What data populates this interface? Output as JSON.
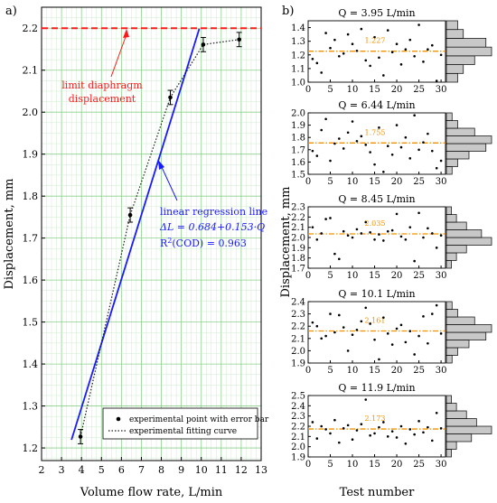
{
  "chart_data": [
    {
      "panel_label": "a)",
      "type": "scatter",
      "xlabel": "Volume flow rate, L/min",
      "ylabel": "Displacement, mm",
      "xlim": [
        2,
        13
      ],
      "ylim": [
        1.17,
        2.25
      ],
      "xticks": [
        2,
        3,
        4,
        5,
        6,
        7,
        8,
        9,
        10,
        11,
        12,
        13
      ],
      "yticks": [
        1.2,
        1.3,
        1.4,
        1.5,
        1.6,
        1.7,
        1.8,
        1.9,
        2.0,
        2.1,
        2.2
      ],
      "grid": "on",
      "series": [
        {
          "name": "experimental point with error bar",
          "kind": "points_with_error_bars",
          "x": [
            3.95,
            6.44,
            8.45,
            10.1,
            11.9
          ],
          "y": [
            1.227,
            1.755,
            2.035,
            2.161,
            2.173
          ],
          "err": [
            0.017,
            0.017,
            0.017,
            0.017,
            0.017
          ]
        },
        {
          "name": "experimental fitting curve",
          "kind": "dotted_line",
          "x": [
            3.95,
            6.44,
            8.45,
            10.1,
            11.9
          ],
          "y": [
            1.227,
            1.755,
            2.035,
            2.161,
            2.173
          ]
        },
        {
          "kind": "regression_line",
          "intercept": 0.684,
          "slope": 0.153,
          "x": [
            3.5,
            9.9
          ]
        },
        {
          "kind": "limit_line",
          "y": 2.2
        }
      ],
      "annotations": {
        "limit_line1": "limit diaphragm",
        "limit_line2": "displacement",
        "regression_title": "linear regression line",
        "regression_eq": "ΔL = 0.684+0.153·Q",
        "regression_r2_prefix": "R",
        "regression_r2_sup": "2",
        "regression_r2_rest": "(COD) = 0.963"
      },
      "legend_position": "bottom-right"
    },
    {
      "panel_label": "b)",
      "type": "scatter",
      "xlabel": "Test number",
      "ylabel": "Displacement, mm",
      "xlim": [
        0,
        31
      ],
      "xticks": [
        0,
        5,
        10,
        15,
        20,
        25,
        30
      ],
      "marginal_histograms": "right",
      "subplots": [
        {
          "title": "Q = 3.95 L/min",
          "ylim": [
            1.0,
            1.45
          ],
          "yticks": [
            1.0,
            1.1,
            1.2,
            1.3,
            1.4
          ],
          "tick_labels": [
            "1.0",
            "1.1",
            "1.2",
            "1.3",
            "1.4"
          ],
          "mean": 1.227,
          "mean_label": "1.227",
          "values": [
            1.17,
            1.14,
            1.07,
            1.36,
            1.25,
            1.31,
            1.19,
            1.21,
            1.35,
            1.28,
            1.23,
            1.39,
            1.16,
            1.12,
            1.33,
            1.18,
            1.05,
            1.38,
            1.22,
            1.28,
            1.13,
            1.24,
            1.31,
            1.19,
            1.42,
            1.15,
            1.24,
            1.27,
            1.01,
            1.2
          ],
          "hist_counts": [
            2,
            3,
            5,
            8,
            7,
            3,
            2
          ]
        },
        {
          "title": "Q = 6.44 L/min",
          "ylim": [
            1.5,
            2.0
          ],
          "yticks": [
            1.5,
            1.6,
            1.7,
            1.8,
            1.9,
            2.0
          ],
          "tick_labels": [
            "1.5",
            "1.6",
            "1.7",
            "1.8",
            "1.9",
            "2.0"
          ],
          "mean": 1.755,
          "mean_label": "1.755",
          "values": [
            1.69,
            1.65,
            1.86,
            1.95,
            1.61,
            1.75,
            1.79,
            1.71,
            1.84,
            1.93,
            1.77,
            1.81,
            1.74,
            1.68,
            1.58,
            1.88,
            1.52,
            1.73,
            1.66,
            1.9,
            1.72,
            1.8,
            1.63,
            1.98,
            1.7,
            1.76,
            1.83,
            1.69,
            1.55,
            1.61
          ],
          "hist_counts": [
            1,
            2,
            4,
            7,
            8,
            5,
            2,
            1
          ]
        },
        {
          "title": "Q = 8.45 L/min",
          "ylim": [
            1.7,
            2.3
          ],
          "yticks": [
            1.7,
            1.8,
            1.9,
            2.0,
            2.1,
            2.2,
            2.3
          ],
          "tick_labels": [
            "1.7",
            "1.8",
            "1.9",
            "2.0",
            "2.1",
            "2.2",
            "2.3"
          ],
          "mean": 2.035,
          "mean_label": "2.035",
          "values": [
            2.1,
            1.98,
            2.04,
            2.18,
            2.19,
            1.84,
            1.79,
            2.06,
            2.02,
            2.0,
            2.08,
            2.04,
            2.15,
            2.05,
            1.98,
            2.03,
            1.97,
            2.06,
            2.07,
            2.23,
            2.01,
            1.98,
            2.1,
            1.77,
            2.24,
            2.0,
            2.09,
            2.04,
            1.9,
            2.02
          ],
          "hist_counts": [
            1,
            2,
            4,
            9,
            7,
            4,
            2,
            1
          ]
        },
        {
          "title": "Q = 10.1 L/min",
          "ylim": [
            1.9,
            2.4
          ],
          "yticks": [
            1.9,
            2.0,
            2.1,
            2.2,
            2.3,
            2.4
          ],
          "tick_labels": [
            "1.9",
            "2.0",
            "2.1",
            "2.2",
            "2.3",
            "2.4"
          ],
          "mean": 2.161,
          "mean_label": "2.161",
          "values": [
            2.23,
            2.2,
            2.1,
            2.12,
            2.3,
            2.15,
            2.29,
            2.19,
            2.0,
            2.13,
            2.17,
            2.24,
            2.35,
            2.22,
            2.09,
            1.93,
            2.27,
            2.14,
            2.05,
            2.18,
            2.21,
            2.07,
            2.16,
            1.97,
            2.12,
            2.28,
            2.06,
            2.3,
            2.37,
            2.14
          ],
          "hist_counts": [
            1,
            2,
            4,
            7,
            8,
            5,
            2,
            1
          ]
        },
        {
          "title": "Q = 11.9 L/min",
          "ylim": [
            1.9,
            2.5
          ],
          "yticks": [
            1.9,
            2.0,
            2.1,
            2.2,
            2.3,
            2.4,
            2.5
          ],
          "tick_labels": [
            "1.9",
            "2.0",
            "2.1",
            "2.2",
            "2.3",
            "2.4",
            "2.5"
          ],
          "mean": 2.173,
          "mean_label": "2.173",
          "values": [
            2.24,
            2.08,
            2.2,
            2.17,
            2.13,
            2.26,
            2.04,
            2.18,
            2.21,
            2.07,
            2.16,
            2.22,
            2.46,
            2.11,
            2.13,
            2.19,
            2.24,
            2.1,
            2.15,
            2.09,
            2.2,
            2.03,
            2.17,
            2.12,
            2.25,
            2.14,
            2.19,
            2.06,
            2.33,
            2.18
          ],
          "hist_counts": [
            1,
            2,
            5,
            9,
            6,
            4,
            2,
            1
          ]
        }
      ]
    }
  ]
}
